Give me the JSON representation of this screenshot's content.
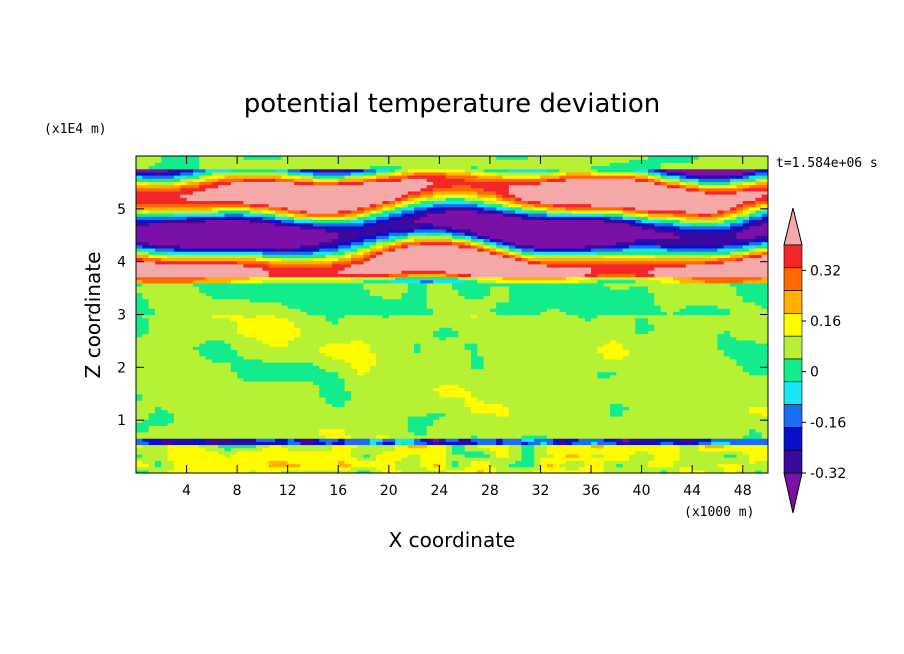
{
  "chart_data": {
    "type": "heatmap",
    "title": "potential temperature deviation",
    "xlabel": "X coordinate",
    "ylabel": "Z coordinate",
    "x_unit_label": "(x1000 m)",
    "y_unit_label": "(x1E4 m)",
    "time_label": "t=1.584e+06 s",
    "x_ticks": [
      4,
      8,
      12,
      16,
      20,
      24,
      28,
      32,
      36,
      40,
      44,
      48
    ],
    "y_ticks": [
      1,
      2,
      3,
      4,
      5
    ],
    "xlim": [
      0,
      50
    ],
    "ylim": [
      0,
      6
    ],
    "colorbar": {
      "levels": [
        -0.4,
        -0.32,
        -0.24,
        -0.16,
        -0.08,
        0,
        0.08,
        0.16,
        0.24,
        0.32,
        0.4
      ],
      "colors": [
        "#7b10a8",
        "#3a0aa0",
        "#0a10c8",
        "#1a6ef2",
        "#18e6f2",
        "#12ec8c",
        "#b6f233",
        "#fffb00",
        "#ffb000",
        "#ff6a00",
        "#f4262a",
        "#f5a8a8"
      ],
      "tick_labels": [
        "0.32",
        "0.16",
        "0",
        "-0.16",
        "-0.32"
      ],
      "tick_values": [
        0.32,
        0.16,
        0,
        -0.16,
        -0.32
      ]
    },
    "field_description_layers": [
      {
        "z_range": [
          0,
          0.6
        ],
        "value": 0.05
      },
      {
        "z_range": [
          0.6,
          3.6
        ],
        "value": 0.0
      },
      {
        "z_range": [
          3.6,
          6.0
        ],
        "value": "banded"
      }
    ]
  }
}
